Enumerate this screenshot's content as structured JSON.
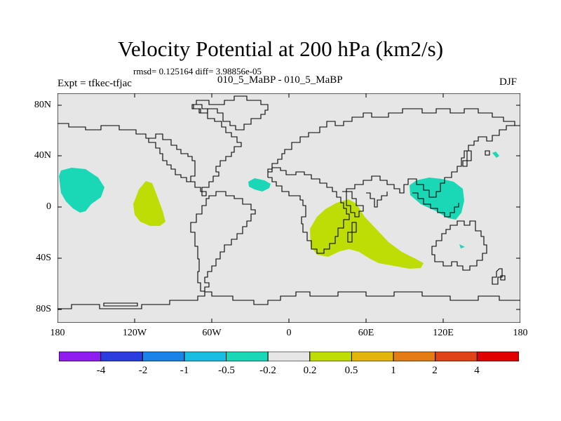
{
  "title": "Velocity Potential at 200 hPa (km2/s)",
  "stats_line": "rmsd= 0.125164 diff= 3.98856e-05",
  "left_label": "Expt = tfkec-tfjac",
  "center_label": "010_5_MaBP - 010_5_MaBP",
  "right_label": "DJF",
  "map": {
    "background_color": "#e6e6e6",
    "lat_labels": [
      "80N",
      "40N",
      "0",
      "40S",
      "80S"
    ],
    "lon_labels": [
      "180",
      "120W",
      "60W",
      "0",
      "60E",
      "120E",
      "180"
    ]
  },
  "colorbar": {
    "labels": [
      "-4",
      "-2",
      "-1",
      "-0.5",
      "-0.2",
      "0.2",
      "0.5",
      "1",
      "2",
      "4"
    ],
    "colors": [
      "#8f1df0",
      "#2a3ee0",
      "#1b82e6",
      "#19bde3",
      "#1ad8b5",
      "#e6e6e6",
      "#bedd05",
      "#e3b40c",
      "#e37c14",
      "#e04416",
      "#e00000"
    ]
  },
  "contour_colors": {
    "negative": "#1ad8b5",
    "positive": "#bedd05"
  }
}
